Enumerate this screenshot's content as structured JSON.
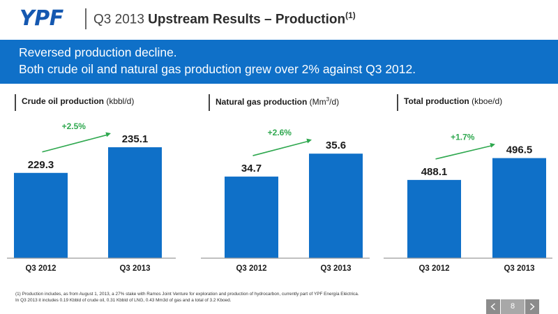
{
  "header": {
    "logo": "YPF",
    "title_prefix": "Q3 2013 ",
    "title_bold": "Upstream Results – Production",
    "title_sup": "(1)"
  },
  "banner": {
    "line1": "Reversed production decline.",
    "line2": "Both crude oil and natural gas production grew over 2% against Q3 2012."
  },
  "panels": [
    {
      "title_bold": "Crude oil production",
      "title_unit_pre": " (kbbl/d)",
      "title_unit_sup": "",
      "title_unit_post": ""
    },
    {
      "title_bold": "Natural gas production",
      "title_unit_pre": " (Mm",
      "title_unit_sup": "3",
      "title_unit_post": "/d)"
    },
    {
      "title_bold": "Total production",
      "title_unit_pre": " (kboe/d)",
      "title_unit_sup": "",
      "title_unit_post": ""
    }
  ],
  "chart_data": [
    {
      "type": "bar",
      "title": "Crude oil production (kbbl/d)",
      "categories": [
        "Q3 2012",
        "Q3 2013"
      ],
      "values": [
        229.3,
        235.1
      ],
      "value_labels": [
        "229.3",
        "235.1"
      ],
      "growth_label": "+2.5%",
      "ylim": [
        210,
        240
      ]
    },
    {
      "type": "bar",
      "title": "Natural gas production (Mm3/d)",
      "categories": [
        "Q3 2012",
        "Q3 2013"
      ],
      "values": [
        34.7,
        35.6
      ],
      "value_labels": [
        "34.7",
        "35.6"
      ],
      "growth_label": "+2.6%",
      "ylim": [
        31.5,
        36.7
      ]
    },
    {
      "type": "bar",
      "title": "Total production (kboe/d)",
      "categories": [
        "Q3 2012",
        "Q3 2013"
      ],
      "values": [
        488.1,
        496.5
      ],
      "value_labels": [
        "488.1",
        "496.5"
      ],
      "growth_label": "+1.7%",
      "ylim": [
        458,
        509
      ]
    }
  ],
  "colors": {
    "bar": "#0f70c8",
    "growth": "#2fa84f",
    "banner": "#0f70c8",
    "logo": "#1558b0"
  },
  "footnote": {
    "line1": "(1) Production includes, as from August 1, 2013, a 27% stake with Ramos Joint Venture for exploration and production of hydrocarbon, currently part of YPF Energía Eléctrica.",
    "line2": "In Q3 2013 it includes 0.19 Kbbld of crude oil, 0.31 Kbbld of LNG, 0.43 Mm3d of gas and a total of 3.2 Kboed."
  },
  "nav": {
    "page": "8"
  }
}
